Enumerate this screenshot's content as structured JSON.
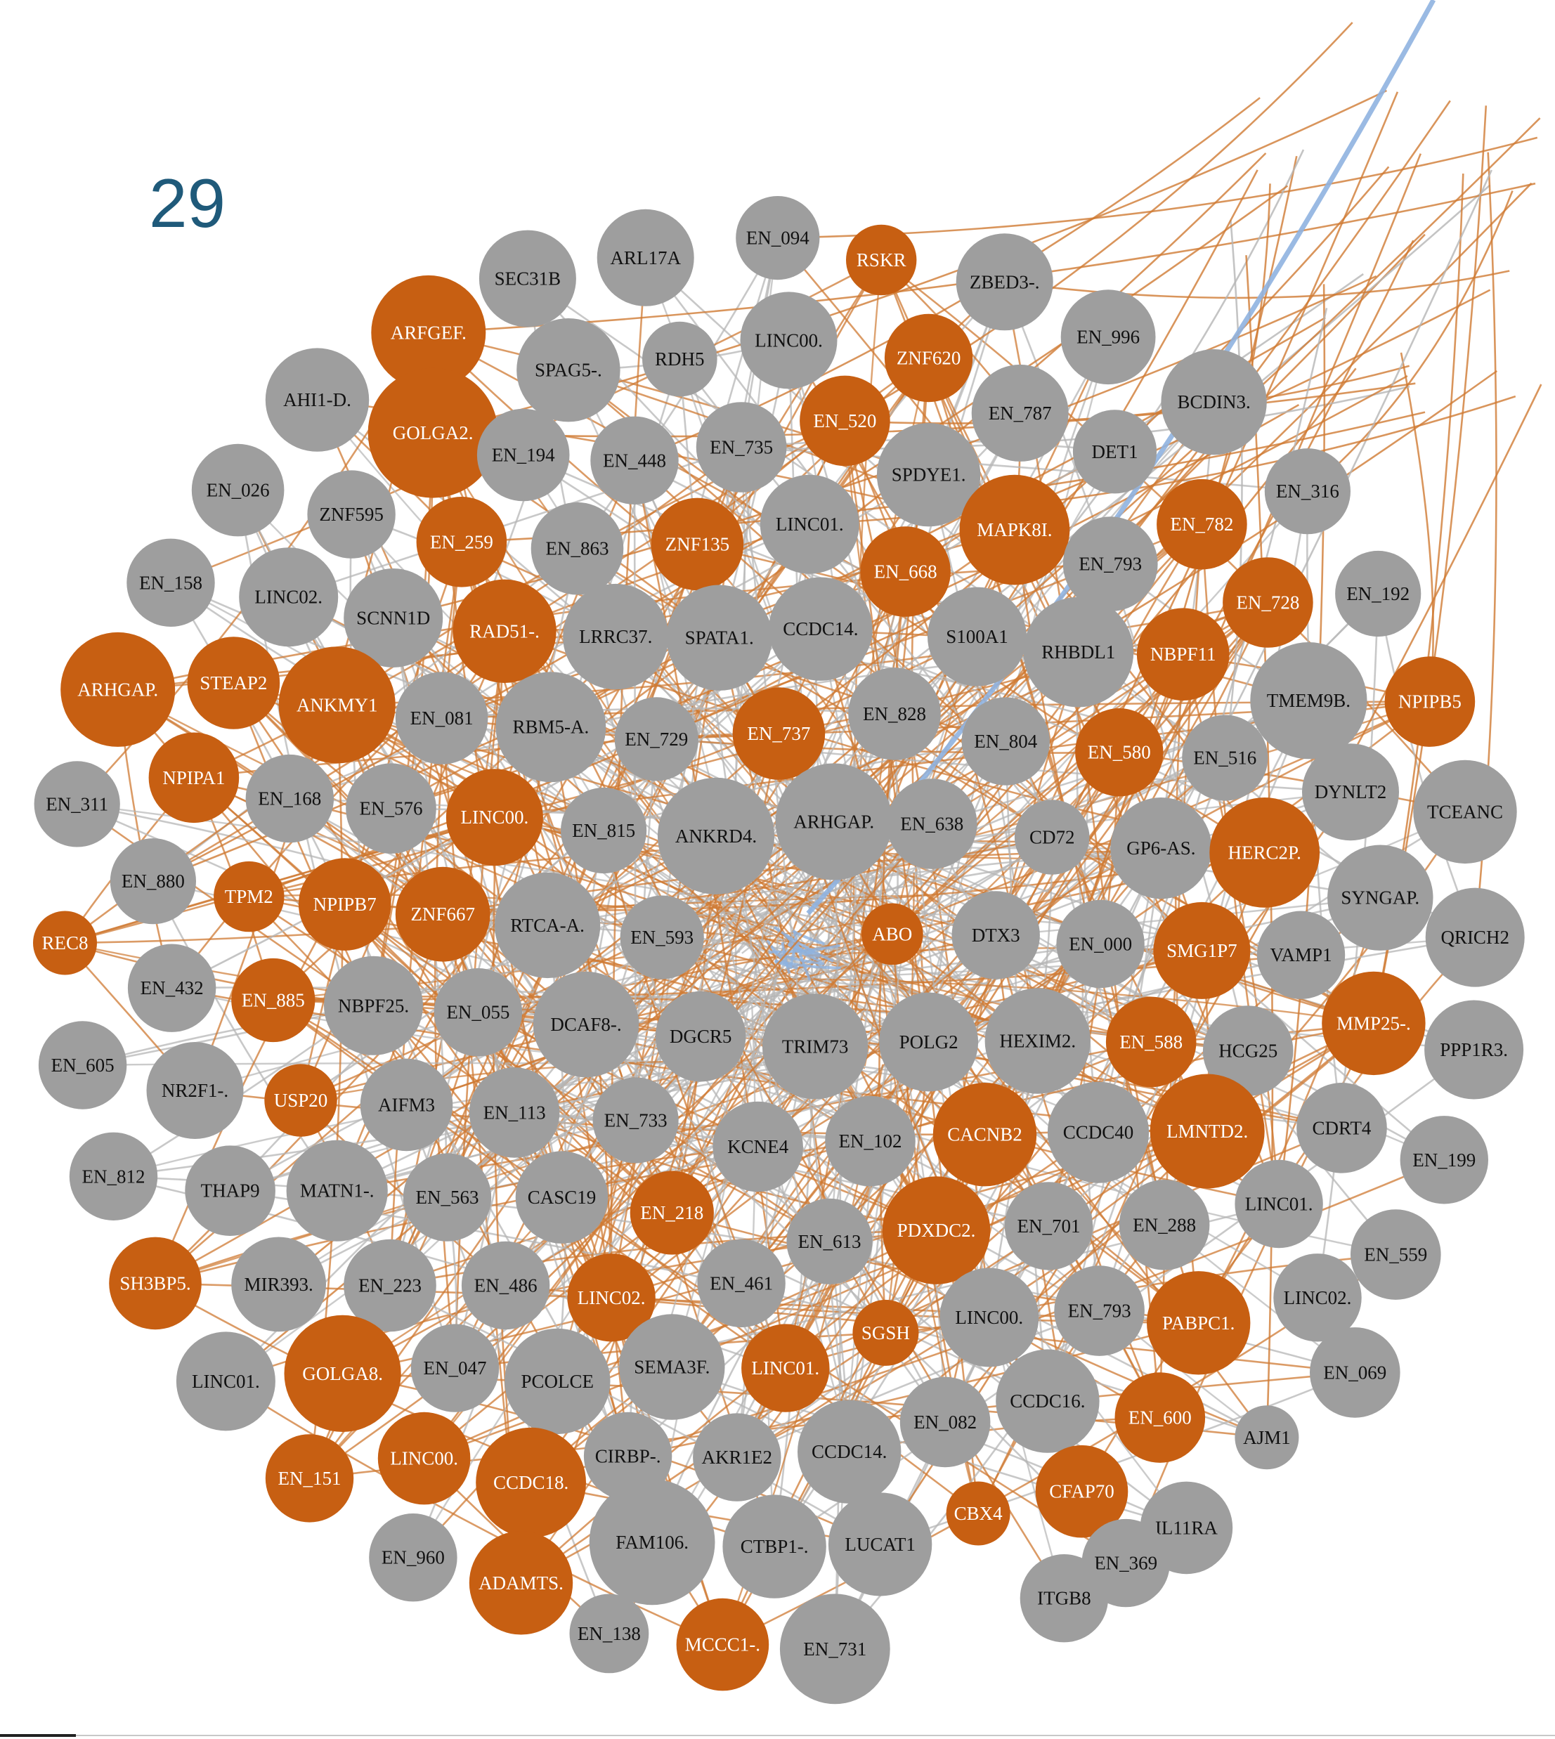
{
  "cluster_label": "29",
  "colors": {
    "gray_node": "#9e9e9e",
    "orange_node": "#c75f12",
    "gray_edge": "#b5b5b5",
    "orange_edge": "#cf7a33",
    "blue_edge": "#8fb3e0",
    "gray_label": "#111111",
    "orange_label": "#ffffff"
  },
  "nodes": [
    {
      "label": "EN_094",
      "color": "gray"
    },
    {
      "label": "SEC31B",
      "color": "gray"
    },
    {
      "label": "ARL17A",
      "color": "gray"
    },
    {
      "label": "RSKR",
      "color": "orange"
    },
    {
      "label": "ZBED3-.",
      "color": "gray"
    },
    {
      "label": "ARFGEF.",
      "color": "orange"
    },
    {
      "label": "RDH5",
      "color": "gray"
    },
    {
      "label": "LINC00.",
      "color": "gray"
    },
    {
      "label": "ZNF620",
      "color": "orange"
    },
    {
      "label": "EN_996",
      "color": "gray"
    },
    {
      "label": "SPAG5-.",
      "color": "gray"
    },
    {
      "label": "AHI1-D.",
      "color": "gray"
    },
    {
      "label": "GOLGA2.",
      "color": "orange"
    },
    {
      "label": "EN_520",
      "color": "orange"
    },
    {
      "label": "EN_787",
      "color": "gray"
    },
    {
      "label": "BCDIN3.",
      "color": "gray"
    },
    {
      "label": "EN_194",
      "color": "gray"
    },
    {
      "label": "EN_448",
      "color": "gray"
    },
    {
      "label": "EN_735",
      "color": "gray"
    },
    {
      "label": "SPDYE1.",
      "color": "gray"
    },
    {
      "label": "DET1",
      "color": "gray"
    },
    {
      "label": "EN_026",
      "color": "gray"
    },
    {
      "label": "ZNF595",
      "color": "gray"
    },
    {
      "label": "EN_259",
      "color": "orange"
    },
    {
      "label": "EN_863",
      "color": "gray"
    },
    {
      "label": "ZNF135",
      "color": "orange"
    },
    {
      "label": "LINC01.",
      "color": "gray"
    },
    {
      "label": "MAPK8I.",
      "color": "orange"
    },
    {
      "label": "EN_782",
      "color": "orange"
    },
    {
      "label": "EN_316",
      "color": "gray"
    },
    {
      "label": "EN_158",
      "color": "gray"
    },
    {
      "label": "LINC02.",
      "color": "gray"
    },
    {
      "label": "SCNN1D",
      "color": "gray"
    },
    {
      "label": "RAD51-.",
      "color": "orange"
    },
    {
      "label": "LRRC37.",
      "color": "gray"
    },
    {
      "label": "SPATA1.",
      "color": "gray"
    },
    {
      "label": "CCDC14.",
      "color": "gray"
    },
    {
      "label": "EN_668",
      "color": "orange"
    },
    {
      "label": "S100A1",
      "color": "gray"
    },
    {
      "label": "RHBDL1",
      "color": "gray"
    },
    {
      "label": "EN_793",
      "color": "gray"
    },
    {
      "label": "EN_728",
      "color": "orange"
    },
    {
      "label": "EN_192",
      "color": "gray"
    },
    {
      "label": "ARHGAP.",
      "color": "orange"
    },
    {
      "label": "STEAP2",
      "color": "orange"
    },
    {
      "label": "ANKMY1",
      "color": "orange"
    },
    {
      "label": "EN_081",
      "color": "gray"
    },
    {
      "label": "RBM5-A.",
      "color": "gray"
    },
    {
      "label": "EN_729",
      "color": "gray"
    },
    {
      "label": "EN_737",
      "color": "orange"
    },
    {
      "label": "EN_828",
      "color": "gray"
    },
    {
      "label": "NBPF11",
      "color": "orange"
    },
    {
      "label": "TMEM9B.",
      "color": "gray"
    },
    {
      "label": "NPIPB5",
      "color": "orange"
    },
    {
      "label": "NPIPA1",
      "color": "orange"
    },
    {
      "label": "EN_168",
      "color": "gray"
    },
    {
      "label": "EN_311",
      "color": "gray"
    },
    {
      "label": "EN_576",
      "color": "gray"
    },
    {
      "label": "LINC00.",
      "color": "orange"
    },
    {
      "label": "EN_815",
      "color": "gray"
    },
    {
      "label": "ANKRD4.",
      "color": "gray"
    },
    {
      "label": "ARHGAP.",
      "color": "gray"
    },
    {
      "label": "EN_638",
      "color": "gray"
    },
    {
      "label": "EN_804",
      "color": "gray"
    },
    {
      "label": "EN_580",
      "color": "orange"
    },
    {
      "label": "EN_516",
      "color": "gray"
    },
    {
      "label": "DYNLT2",
      "color": "gray"
    },
    {
      "label": "TCEANC",
      "color": "gray"
    },
    {
      "label": "CD72",
      "color": "gray"
    },
    {
      "label": "GP6-AS.",
      "color": "gray"
    },
    {
      "label": "HERC2P.",
      "color": "orange"
    },
    {
      "label": "EN_880",
      "color": "gray"
    },
    {
      "label": "TPM2",
      "color": "orange"
    },
    {
      "label": "NPIPB7",
      "color": "orange"
    },
    {
      "label": "ZNF667",
      "color": "orange"
    },
    {
      "label": "RTCA-A.",
      "color": "gray"
    },
    {
      "label": "EN_593",
      "color": "gray"
    },
    {
      "label": "ABO",
      "color": "orange"
    },
    {
      "label": "DTX3",
      "color": "gray"
    },
    {
      "label": "EN_000",
      "color": "gray"
    },
    {
      "label": "SMG1P7",
      "color": "orange"
    },
    {
      "label": "SYNGAP.",
      "color": "gray"
    },
    {
      "label": "VAMP1",
      "color": "gray"
    },
    {
      "label": "QRICH2",
      "color": "gray"
    },
    {
      "label": "REC8",
      "color": "orange"
    },
    {
      "label": "EN_432",
      "color": "gray"
    },
    {
      "label": "EN_885",
      "color": "orange"
    },
    {
      "label": "NBPF25.",
      "color": "gray"
    },
    {
      "label": "EN_055",
      "color": "gray"
    },
    {
      "label": "DCAF8-.",
      "color": "gray"
    },
    {
      "label": "DGCR5",
      "color": "gray"
    },
    {
      "label": "TRIM73",
      "color": "gray"
    },
    {
      "label": "POLG2",
      "color": "gray"
    },
    {
      "label": "HEXIM2.",
      "color": "gray"
    },
    {
      "label": "EN_588",
      "color": "orange"
    },
    {
      "label": "HCG25",
      "color": "gray"
    },
    {
      "label": "MMP25-.",
      "color": "orange"
    },
    {
      "label": "PPP1R3.",
      "color": "gray"
    },
    {
      "label": "EN_605",
      "color": "gray"
    },
    {
      "label": "NR2F1-.",
      "color": "gray"
    },
    {
      "label": "USP20",
      "color": "orange"
    },
    {
      "label": "AIFM3",
      "color": "gray"
    },
    {
      "label": "EN_113",
      "color": "gray"
    },
    {
      "label": "EN_733",
      "color": "gray"
    },
    {
      "label": "KCNE4",
      "color": "gray"
    },
    {
      "label": "EN_102",
      "color": "gray"
    },
    {
      "label": "CACNB2",
      "color": "orange"
    },
    {
      "label": "CCDC40",
      "color": "gray"
    },
    {
      "label": "LMNTD2.",
      "color": "orange"
    },
    {
      "label": "CDRT4",
      "color": "gray"
    },
    {
      "label": "EN_199",
      "color": "gray"
    },
    {
      "label": "EN_812",
      "color": "gray"
    },
    {
      "label": "THAP9",
      "color": "gray"
    },
    {
      "label": "MATN1-.",
      "color": "gray"
    },
    {
      "label": "EN_563",
      "color": "gray"
    },
    {
      "label": "CASC19",
      "color": "gray"
    },
    {
      "label": "EN_218",
      "color": "orange"
    },
    {
      "label": "PDXDC2.",
      "color": "orange"
    },
    {
      "label": "EN_701",
      "color": "gray"
    },
    {
      "label": "EN_288",
      "color": "gray"
    },
    {
      "label": "LINC01.",
      "color": "gray"
    },
    {
      "label": "EN_559",
      "color": "gray"
    },
    {
      "label": "SH3BP5.",
      "color": "orange"
    },
    {
      "label": "MIR393.",
      "color": "gray"
    },
    {
      "label": "EN_223",
      "color": "gray"
    },
    {
      "label": "EN_486",
      "color": "gray"
    },
    {
      "label": "LINC02.",
      "color": "orange"
    },
    {
      "label": "EN_461",
      "color": "gray"
    },
    {
      "label": "EN_613",
      "color": "gray"
    },
    {
      "label": "SGSH",
      "color": "orange"
    },
    {
      "label": "LINC00.",
      "color": "gray"
    },
    {
      "label": "EN_793",
      "color": "gray"
    },
    {
      "label": "PABPC1.",
      "color": "orange"
    },
    {
      "label": "LINC02.",
      "color": "gray"
    },
    {
      "label": "LINC01.",
      "color": "gray"
    },
    {
      "label": "GOLGA8.",
      "color": "orange"
    },
    {
      "label": "EN_047",
      "color": "gray"
    },
    {
      "label": "PCOLCE",
      "color": "gray"
    },
    {
      "label": "SEMA3F.",
      "color": "gray"
    },
    {
      "label": "LINC01.",
      "color": "orange"
    },
    {
      "label": "CCDC16.",
      "color": "gray"
    },
    {
      "label": "EN_069",
      "color": "gray"
    },
    {
      "label": "EN_082",
      "color": "gray"
    },
    {
      "label": "EN_600",
      "color": "orange"
    },
    {
      "label": "AJM1",
      "color": "gray"
    },
    {
      "label": "EN_151",
      "color": "orange"
    },
    {
      "label": "LINC00.",
      "color": "orange"
    },
    {
      "label": "CIRBP-.",
      "color": "gray"
    },
    {
      "label": "AKR1E2",
      "color": "gray"
    },
    {
      "label": "CCDC14.",
      "color": "gray"
    },
    {
      "label": "CCDC18.",
      "color": "orange"
    },
    {
      "label": "CBX4",
      "color": "orange"
    },
    {
      "label": "CFAP70",
      "color": "orange"
    },
    {
      "label": "IL11RA",
      "color": "gray"
    },
    {
      "label": "EN_960",
      "color": "gray"
    },
    {
      "label": "ADAMTS.",
      "color": "orange"
    },
    {
      "label": "FAM106.",
      "color": "gray"
    },
    {
      "label": "CTBP1-.",
      "color": "gray"
    },
    {
      "label": "LUCAT1",
      "color": "gray"
    },
    {
      "label": "EN_369",
      "color": "gray"
    },
    {
      "label": "ITGB8",
      "color": "gray"
    },
    {
      "label": "EN_138",
      "color": "gray"
    },
    {
      "label": "MCCC1-.",
      "color": "orange"
    },
    {
      "label": "EN_731",
      "color": "gray"
    }
  ]
}
